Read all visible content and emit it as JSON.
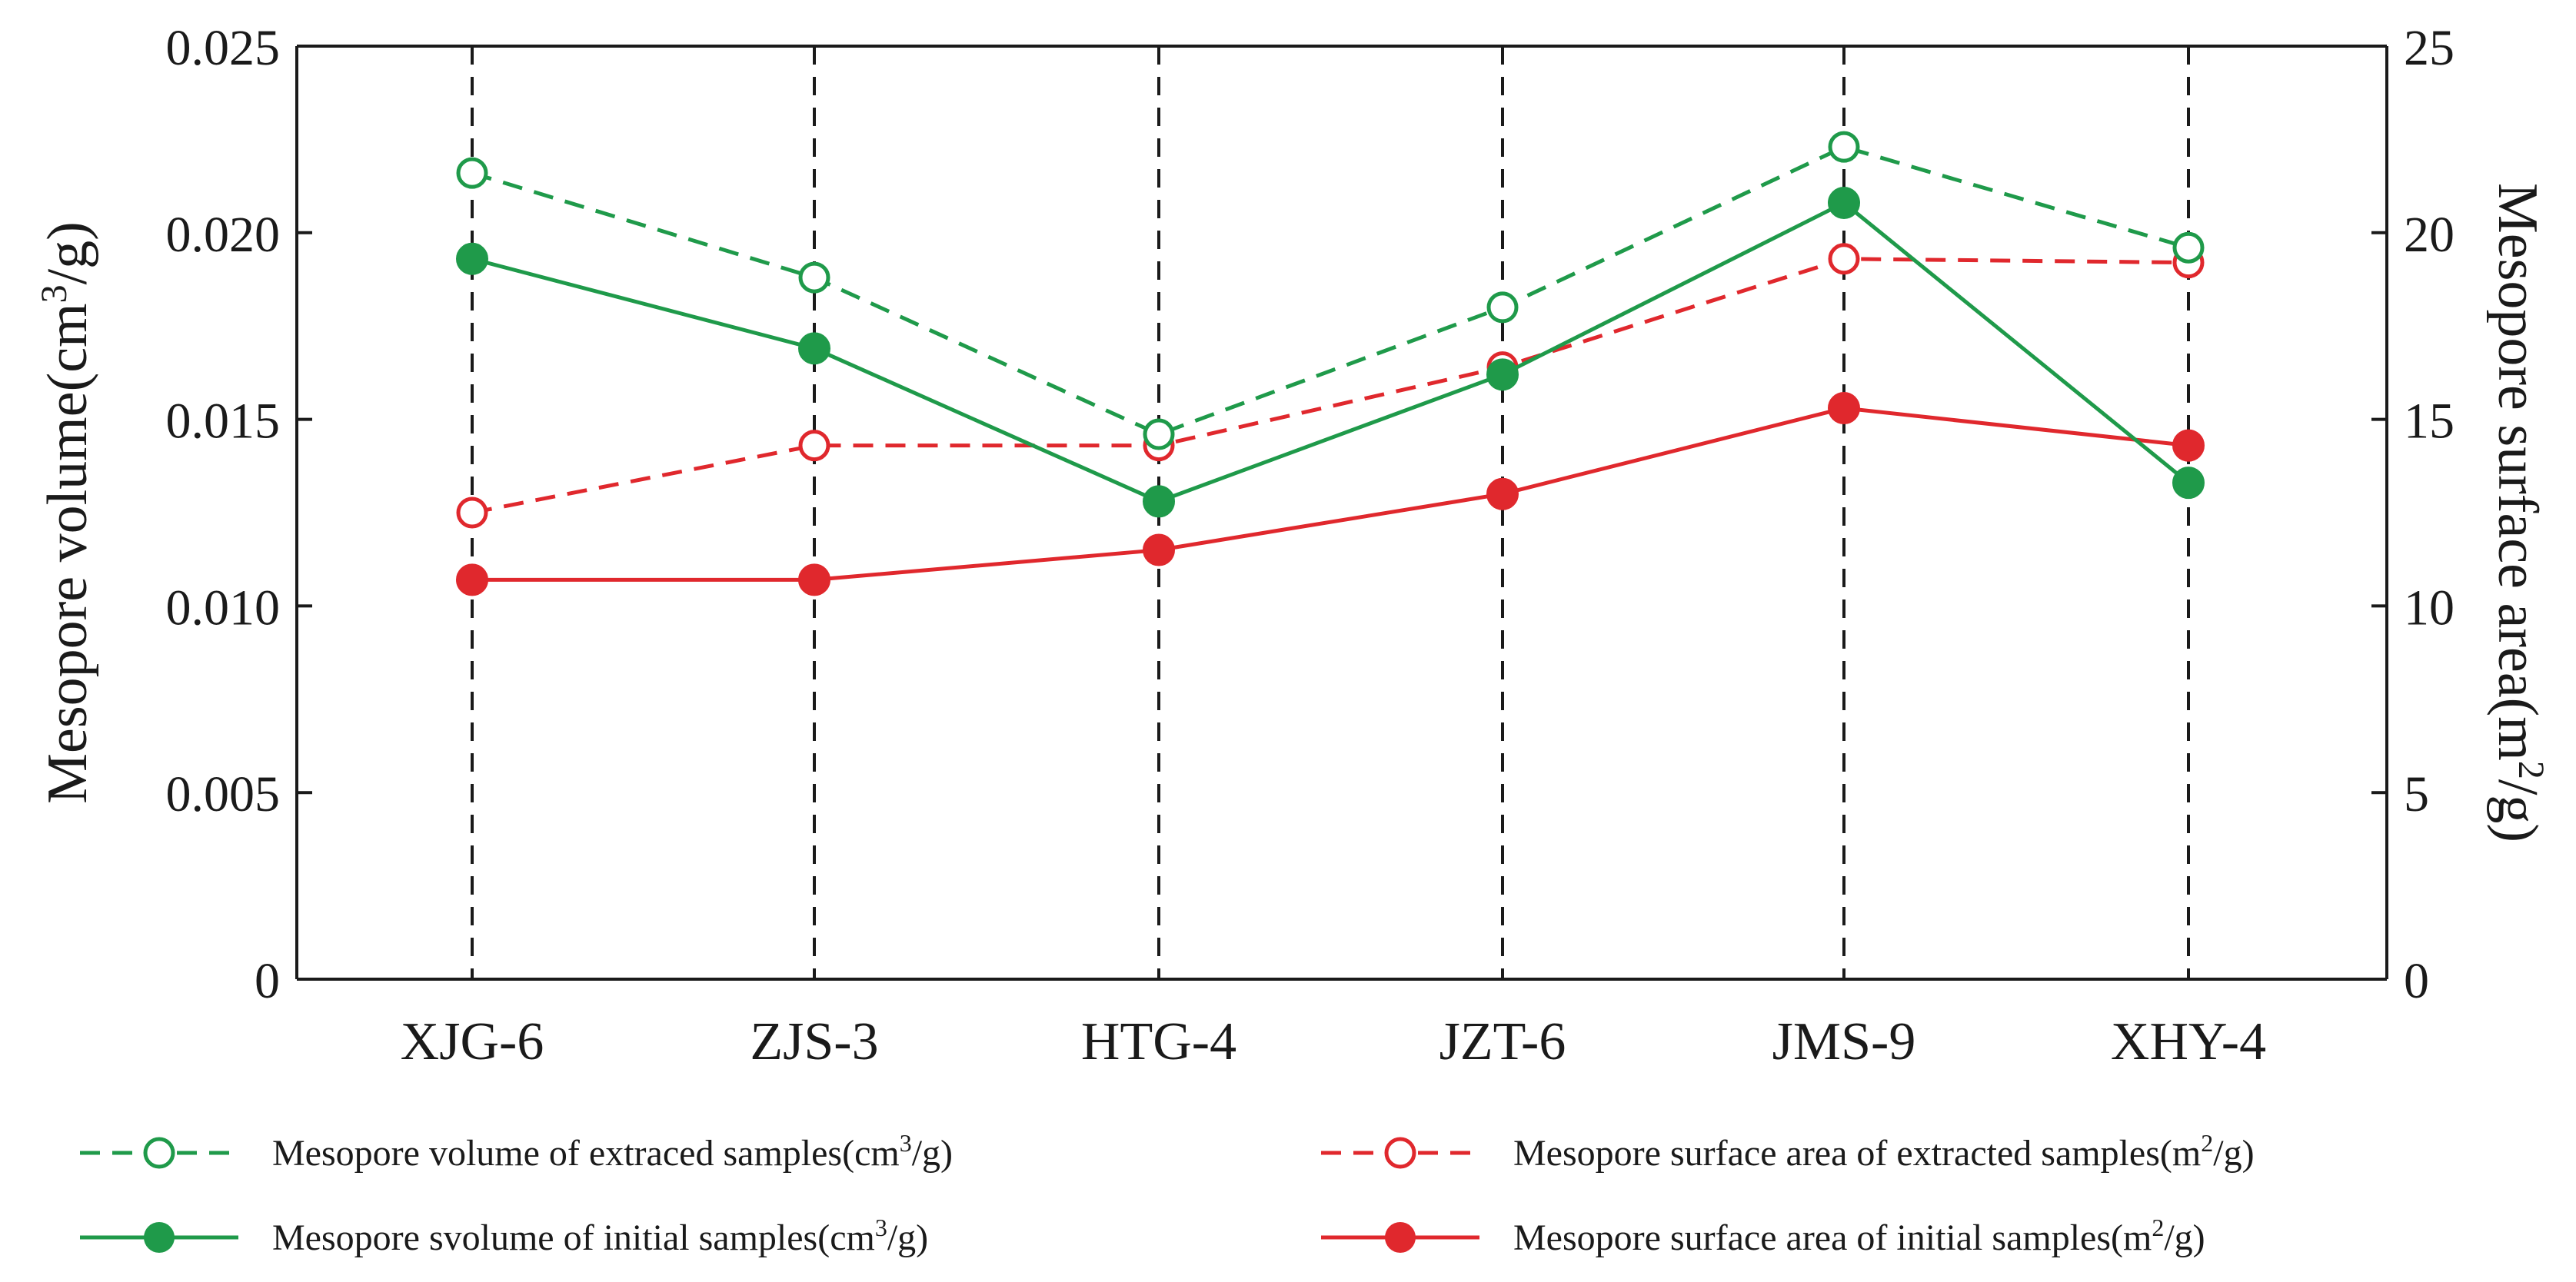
{
  "chart_data": {
    "type": "line",
    "categories": [
      "XJG-6",
      "ZJS-3",
      "HTG-4",
      "JZT-6",
      "JMS-9",
      "XHY-4"
    ],
    "left_axis": {
      "label": "Mesopore volume(cm",
      "label_sup": "3",
      "label_end": "/g)",
      "range": [
        0,
        0.025
      ],
      "ticks": [
        {
          "value": 0,
          "label": "0"
        },
        {
          "value": 0.005,
          "label": "0.005"
        },
        {
          "value": 0.01,
          "label": "0.010"
        },
        {
          "value": 0.015,
          "label": "0.015"
        },
        {
          "value": 0.02,
          "label": "0.020"
        },
        {
          "value": 0.025,
          "label": "0.025"
        }
      ]
    },
    "right_axis": {
      "label": "Mesopore surface area(m",
      "label_sup": "2",
      "label_end": "/g)",
      "range": [
        0,
        25
      ],
      "ticks": [
        {
          "value": 0,
          "label": "0"
        },
        {
          "value": 5,
          "label": "5"
        },
        {
          "value": 10,
          "label": "10"
        },
        {
          "value": 15,
          "label": "15"
        },
        {
          "value": 20,
          "label": "20"
        },
        {
          "value": 25,
          "label": "25"
        }
      ]
    },
    "series": [
      {
        "id": "vol-extracted",
        "axis": "left",
        "color": "#1f9a4a",
        "dashed": true,
        "filled": false,
        "values": [
          0.0216,
          0.0188,
          0.0146,
          0.018,
          0.0223,
          0.0196
        ],
        "legend": {
          "text": "Mesopore volume of extraced samples(cm",
          "sup": "3",
          "end": "/g)"
        }
      },
      {
        "id": "area-extracted",
        "axis": "right",
        "color": "#e0282d",
        "dashed": true,
        "filled": false,
        "values": [
          12.5,
          14.3,
          14.3,
          16.4,
          19.3,
          19.2
        ],
        "legend": {
          "text": "Mesopore surface area of extracted samples(m",
          "sup": "2",
          "end": "/g)"
        }
      },
      {
        "id": "vol-initial",
        "axis": "left",
        "color": "#1f9a4a",
        "dashed": false,
        "filled": true,
        "values": [
          0.0193,
          0.0169,
          0.0128,
          0.0162,
          0.0208,
          0.0133
        ],
        "legend": {
          "text": "Mesopore svolume of initial samples(cm",
          "sup": "3",
          "end": "/g)"
        }
      },
      {
        "id": "area-initial",
        "axis": "right",
        "color": "#e0282d",
        "dashed": false,
        "filled": true,
        "values": [
          10.7,
          10.7,
          11.5,
          13.0,
          15.3,
          14.3
        ],
        "legend": {
          "text": "Mesopore surface area of initial samples(m",
          "sup": "2",
          "end": "/g)"
        }
      }
    ],
    "guides": {
      "vertical_dashed_lines_at_categories": true,
      "color": "#1a1a1a"
    },
    "legend_position": "bottom"
  }
}
